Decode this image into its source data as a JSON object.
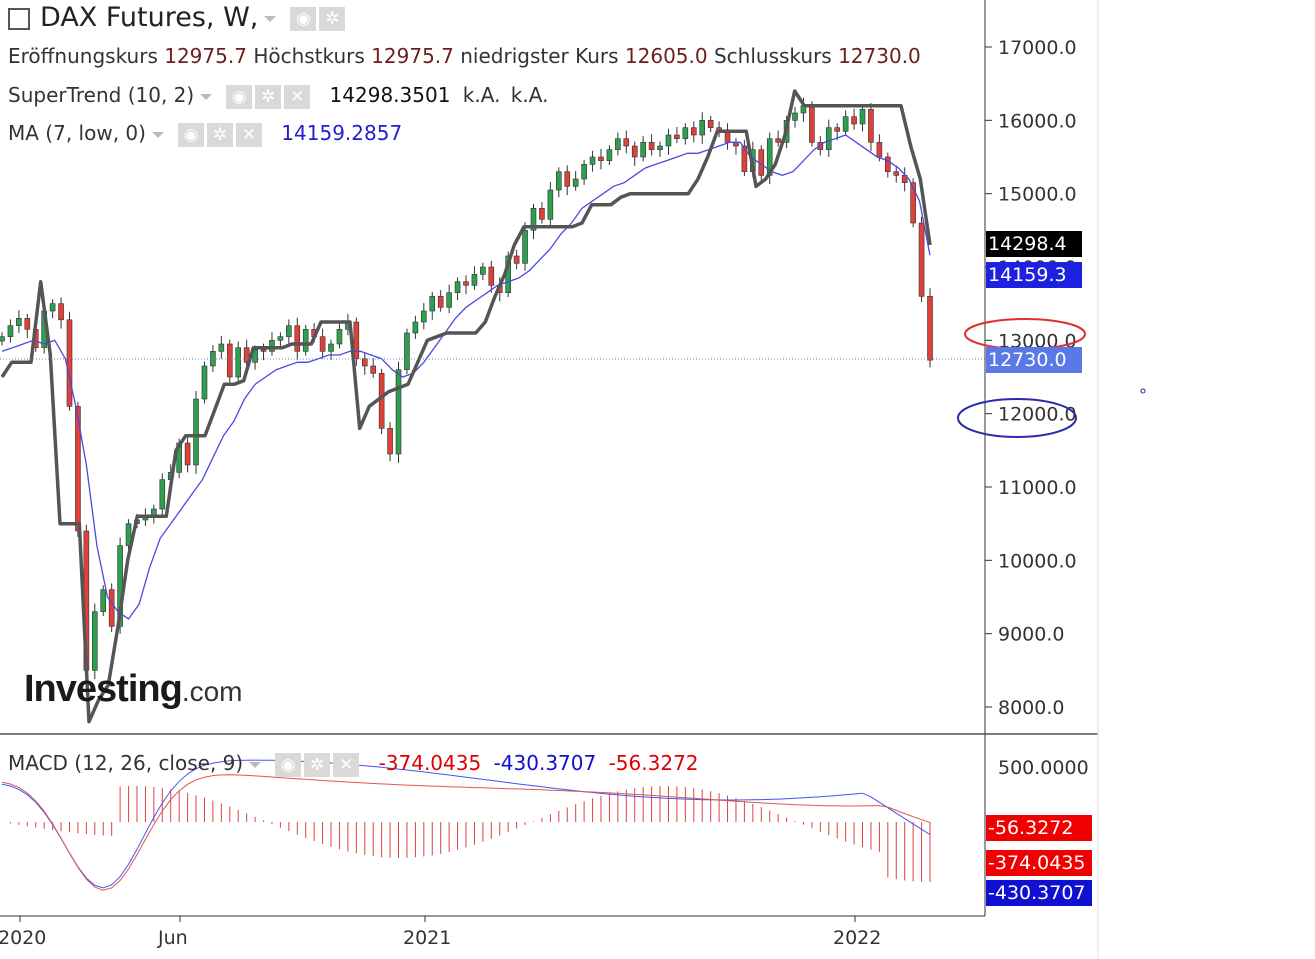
{
  "header": {
    "title": "DAX Futures, W,",
    "ohlc": [
      {
        "label": "Eröffnungskurs",
        "value": "12975.7"
      },
      {
        "label": "Höchstkurs",
        "value": "12975.7"
      },
      {
        "label": "niedrigster Kurs",
        "value": "12605.0"
      },
      {
        "label": "Schlusskurs",
        "value": "12730.0"
      }
    ]
  },
  "indicators": {
    "supertrend": {
      "label": "SuperTrend (10, 2)",
      "value": "14298.3501",
      "extra1": "k.A.",
      "extra2": "k.A."
    },
    "ma": {
      "label": "MA (7, low, 0)",
      "value": "14159.2857"
    },
    "macd": {
      "label": "MACD (12, 26, close, 9)",
      "v1": "-374.0435",
      "v2": "-430.3707",
      "v3": "-56.3272"
    }
  },
  "tags": {
    "supertrend": "14298.4",
    "ma": "14159.3",
    "close": "12730.0",
    "hist": "-56.3272",
    "macd": "-374.0435",
    "signal": "-430.3707"
  },
  "icons": [
    "checkbox-icon",
    "eye-icon",
    "gear-icon",
    "close-icon",
    "caret-down-icon"
  ],
  "colors": {
    "up": "#2e9e4f",
    "down": "#e0403a",
    "supertrend": "#555555",
    "ma": "#3a3adb",
    "macd_line": "#4455ee",
    "signal_line": "#e05555"
  },
  "logo": {
    "brand": "Investing",
    "suffix": ".com"
  },
  "chart_data": {
    "type": "candlestick",
    "price_axis_ticks": [
      17000,
      16000,
      15000,
      14000,
      13000,
      12000,
      11000,
      10000,
      9000,
      8000
    ],
    "macd_axis_ticks": [
      500
    ],
    "time_axis_ticks": [
      "2020",
      "Jun",
      "2021",
      "2022"
    ],
    "annotations": [
      {
        "shape": "ellipse",
        "color": "#e03030",
        "at_price": 13000
      },
      {
        "shape": "ellipse",
        "color": "#2a2aaa",
        "at_price": 12000
      }
    ],
    "weekly_closes": [
      13050,
      13200,
      13300,
      13150,
      12900,
      13400,
      13500,
      13280,
      12100,
      10400,
      8500,
      9300,
      9600,
      9100,
      10200,
      10500,
      10550,
      10600,
      10700,
      11100,
      11200,
      11600,
      11300,
      12200,
      12650,
      12850,
      12950,
      12500,
      12900,
      12700,
      12870,
      12850,
      13000,
      13050,
      13200,
      12850,
      13150,
      13050,
      12850,
      12950,
      13150,
      13250,
      12750,
      12650,
      12550,
      11800,
      11450,
      12600,
      13100,
      13250,
      13400,
      13600,
      13450,
      13650,
      13800,
      13750,
      13900,
      14000,
      13750,
      13650,
      14150,
      14050,
      14500,
      14800,
      14650,
      15050,
      15300,
      15100,
      15200,
      15400,
      15500,
      15450,
      15600,
      15750,
      15650,
      15500,
      15700,
      15600,
      15650,
      15800,
      15750,
      15900,
      15800,
      16000,
      15900,
      15850,
      15700,
      15650,
      15300,
      15600,
      15250,
      15750,
      15700,
      16000,
      16100,
      16200,
      15700,
      15600,
      15900,
      15850,
      16050,
      15950,
      16150,
      15700,
      15500,
      15300,
      15250,
      15150,
      14600,
      13600,
      12730
    ],
    "supertrend": [
      12500,
      12700,
      12700,
      12700,
      13800,
      12800,
      10500,
      10500,
      10500,
      7800,
      8100,
      8300,
      9100,
      10000,
      10600,
      10600,
      10600,
      10600,
      11500,
      11700,
      11700,
      11700,
      12050,
      12400,
      12400,
      12450,
      12900,
      12900,
      12900,
      12900,
      12950,
      12950,
      12950,
      13250,
      13250,
      13250,
      13250,
      11800,
      12100,
      12200,
      12300,
      12350,
      12400,
      12700,
      13000,
      13050,
      13100,
      13100,
      13100,
      13100,
      13250,
      13600,
      13900,
      14300,
      14550,
      14550,
      14550,
      14550,
      14550,
      14550,
      14600,
      14850,
      14850,
      14850,
      14950,
      15000,
      15000,
      15000,
      15000,
      15000,
      15000,
      15000,
      15200,
      15500,
      15850,
      15850,
      15850,
      15850,
      15100,
      15200,
      15400,
      15800,
      16400,
      16200,
      16200,
      16200,
      16200,
      16200,
      16200,
      16200,
      16200,
      16200,
      16200,
      16200,
      15650,
      15200,
      14300
    ],
    "ma": [
      12850,
      12900,
      12950,
      13000,
      12950,
      13000,
      12750,
      12100,
      11300,
      10200,
      9500,
      9300,
      9200,
      9400,
      9900,
      10300,
      10500,
      10700,
      10900,
      11100,
      11400,
      11700,
      11900,
      12200,
      12400,
      12500,
      12600,
      12650,
      12700,
      12700,
      12750,
      12800,
      12800,
      12850,
      12850,
      12800,
      12750,
      12600,
      12500,
      12550,
      12700,
      12900,
      13100,
      13300,
      13450,
      13550,
      13650,
      13750,
      13800,
      13850,
      13950,
      14100,
      14250,
      14450,
      14600,
      14800,
      14900,
      15000,
      15100,
      15150,
      15250,
      15350,
      15400,
      15450,
      15500,
      15550,
      15550,
      15600,
      15650,
      15700,
      15700,
      15500,
      15400,
      15300,
      15250,
      15300,
      15450,
      15600,
      15700,
      15750,
      15800,
      15700,
      15600,
      15500,
      15450,
      15350,
      15200,
      14900,
      14159
    ],
    "macd": [
      -374.0435
    ],
    "signal": [
      -430.3707
    ],
    "histogram": [
      -56.3272
    ]
  }
}
